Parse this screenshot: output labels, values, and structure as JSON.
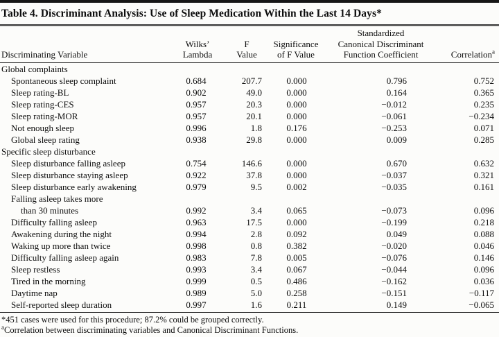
{
  "page": {
    "background": "#fcfcfa",
    "rule_color": "#161616"
  },
  "table": {
    "title": "Table 4. Discriminant Analysis: Use of Sleep Medication Within the Last 14 Days*",
    "header": {
      "variable": "Discriminating Variable",
      "wilks_lambda": [
        "Wilks’",
        "Lambda"
      ],
      "f_value": [
        "F",
        "Value"
      ],
      "significance": [
        "Significance",
        "of F Value"
      ],
      "coefficient": [
        "Standardized",
        "Canonical Discriminant",
        "Function Coefficient"
      ],
      "correlation": "Correlation",
      "correlation_footnote_marker": "a"
    },
    "sections": [
      {
        "label": "Global complaints",
        "rows": [
          {
            "variable": "Spontaneous sleep complaint",
            "wilks": "0.684",
            "f": "207.7",
            "sig": "0.000",
            "coef": "0.796",
            "corr": "0.752"
          },
          {
            "variable": "Sleep rating-BL",
            "wilks": "0.902",
            "f": "49.0",
            "sig": "0.000",
            "coef": "0.164",
            "corr": "0.365"
          },
          {
            "variable": "Sleep rating-CES",
            "wilks": "0.957",
            "f": "20.3",
            "sig": "0.000",
            "coef": "−0.012",
            "corr": "0.235"
          },
          {
            "variable": "Sleep rating-MOR",
            "wilks": "0.957",
            "f": "20.1",
            "sig": "0.000",
            "coef": "−0.061",
            "corr": "−0.234"
          },
          {
            "variable": "Not enough sleep",
            "wilks": "0.996",
            "f": "1.8",
            "sig": "0.176",
            "coef": "−0.253",
            "corr": "0.071"
          },
          {
            "variable": "Global sleep rating",
            "wilks": "0.938",
            "f": "29.8",
            "sig": "0.000",
            "coef": "0.009",
            "corr": "0.285"
          }
        ]
      },
      {
        "label": "Specific sleep disturbance",
        "rows": [
          {
            "variable": "Sleep disturbance falling asleep",
            "wilks": "0.754",
            "f": "146.6",
            "sig": "0.000",
            "coef": "0.670",
            "corr": "0.632"
          },
          {
            "variable": "Sleep disturbance staying asleep",
            "wilks": "0.922",
            "f": "37.8",
            "sig": "0.000",
            "coef": "−0.037",
            "corr": "0.321"
          },
          {
            "variable": "Sleep disturbance early awakening",
            "wilks": "0.979",
            "f": "9.5",
            "sig": "0.002",
            "coef": "−0.035",
            "corr": "0.161"
          },
          {
            "variable": [
              "Falling asleep takes more",
              "than 30 minutes"
            ],
            "wilks": "0.992",
            "f": "3.4",
            "sig": "0.065",
            "coef": "−0.073",
            "corr": "0.096"
          },
          {
            "variable": "Difficulty falling asleep",
            "wilks": "0.963",
            "f": "17.5",
            "sig": "0.000",
            "coef": "−0.199",
            "corr": "0.218"
          },
          {
            "variable": "Awakening during the night",
            "wilks": "0.994",
            "f": "2.8",
            "sig": "0.092",
            "coef": "0.049",
            "corr": "0.088"
          },
          {
            "variable": "Waking up more than twice",
            "wilks": "0.998",
            "f": "0.8",
            "sig": "0.382",
            "coef": "−0.020",
            "corr": "0.046"
          },
          {
            "variable": "Difficulty falling asleep again",
            "wilks": "0.983",
            "f": "7.8",
            "sig": "0.005",
            "coef": "−0.076",
            "corr": "0.146"
          },
          {
            "variable": "Sleep restless",
            "wilks": "0.993",
            "f": "3.4",
            "sig": "0.067",
            "coef": "−0.044",
            "corr": "0.096"
          },
          {
            "variable": "Tired in the morning",
            "wilks": "0.999",
            "f": "0.5",
            "sig": "0.486",
            "coef": "−0.162",
            "corr": "0.036"
          },
          {
            "variable": "Daytime nap",
            "wilks": "0.989",
            "f": "5.0",
            "sig": "0.258",
            "coef": "−0.151",
            "corr": "−0.117"
          },
          {
            "variable": "Self-reported sleep duration",
            "wilks": "0.997",
            "f": "1.6",
            "sig": "0.211",
            "coef": "0.149",
            "corr": "−0.065"
          }
        ]
      }
    ],
    "footnotes": [
      {
        "marker": "*",
        "superscript": false,
        "text": "451 cases were used for this procedure; 87.2% could be grouped correctly."
      },
      {
        "marker": "a",
        "superscript": true,
        "text": "Correlation between discriminating variables and Canonical Discriminant Functions."
      }
    ]
  }
}
